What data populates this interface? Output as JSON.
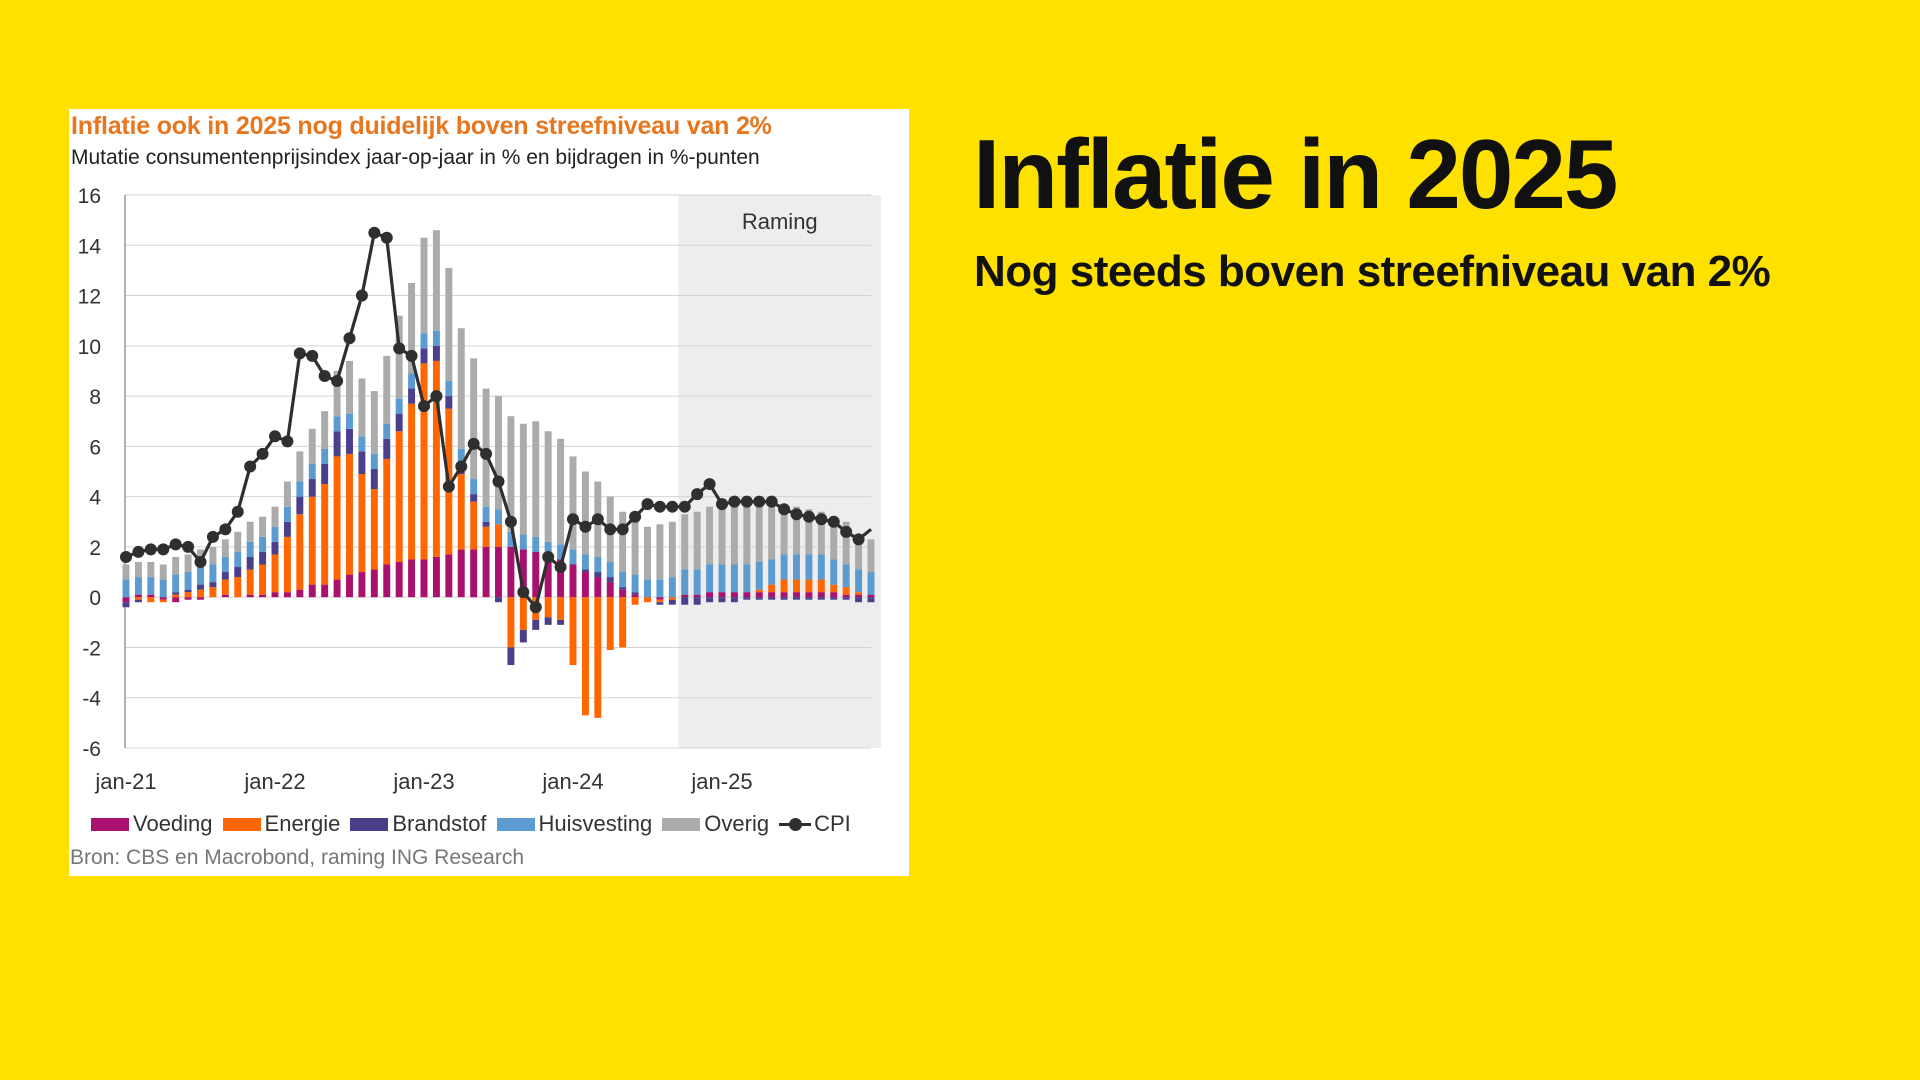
{
  "page": {
    "headline": "Inflatie in 2025",
    "subheadline": "Nog steeds boven streefniveau van 2%"
  },
  "colors": {
    "background": "#FFE100",
    "voeding": "#A8116E",
    "energie": "#FF6600",
    "brandstof": "#4B3F8C",
    "huisvesting": "#5B9BD0",
    "overig": "#ABABAB",
    "cpi": "#2F2F2F",
    "title": "#E8761F"
  },
  "chart_data": {
    "type": "bar",
    "stacked": true,
    "title": "Inflatie ook in 2025 nog duidelijk boven streefniveau van 2%",
    "subtitle": "Mutatie consumentenprijsindex jaar-op-jaar in % en bijdragen in %-punten",
    "source": "Bron: CBS en Macrobond, raming ING Research",
    "ylim": [
      -6,
      16
    ],
    "yticks": [
      "16",
      "14",
      "12",
      "10",
      "8",
      "6",
      "4",
      "2",
      "0",
      "-2",
      "-4",
      "-6"
    ],
    "xtick_labels": [
      "jan-21",
      "jan-22",
      "jan-23",
      "jan-24",
      "jan-25"
    ],
    "xtick_index": [
      0,
      12,
      24,
      36,
      48
    ],
    "forecast": {
      "label": "Raming",
      "start_index": 45,
      "end_index": 60
    },
    "grid": true,
    "legend_position": "bottom",
    "series": [
      {
        "name": "Voeding",
        "type": "bar",
        "values": [
          -0.2,
          0.1,
          0.1,
          -0.1,
          -0.2,
          -0.1,
          -0.1,
          0.0,
          0.1,
          0.0,
          0.1,
          0.1,
          0.2,
          0.2,
          0.3,
          0.5,
          0.5,
          0.7,
          0.9,
          1.0,
          1.1,
          1.3,
          1.4,
          1.5,
          1.5,
          1.6,
          1.7,
          1.9,
          1.9,
          2.0,
          2.0,
          2.0,
          1.9,
          1.8,
          1.6,
          1.5,
          1.3,
          1.0,
          0.8,
          0.6,
          0.3,
          0.1,
          0.0,
          -0.1,
          0.0,
          0.1,
          0.1,
          0.2,
          0.2,
          0.2,
          0.2,
          0.2,
          0.2,
          0.2,
          0.2,
          0.2,
          0.2,
          0.2,
          0.1,
          0.1,
          0.1
        ]
      },
      {
        "name": "Energie",
        "type": "bar",
        "values": [
          0.0,
          -0.1,
          -0.2,
          -0.1,
          0.1,
          0.2,
          0.3,
          0.4,
          0.6,
          0.8,
          1.0,
          1.2,
          1.5,
          2.2,
          3.0,
          3.5,
          4.0,
          4.9,
          4.8,
          3.9,
          3.2,
          4.2,
          5.2,
          6.2,
          7.8,
          7.8,
          5.8,
          3.0,
          1.9,
          0.8,
          0.9,
          -2.0,
          -1.3,
          -0.9,
          -0.8,
          -0.9,
          -2.7,
          -4.7,
          -4.8,
          -2.1,
          -2.0,
          -0.3,
          -0.2,
          -0.1,
          -0.1,
          0.0,
          0.0,
          0.0,
          0.0,
          0.0,
          0.0,
          0.1,
          0.3,
          0.5,
          0.5,
          0.5,
          0.5,
          0.3,
          0.3,
          0.1,
          0.0
        ]
      },
      {
        "name": "Brandstof",
        "type": "bar",
        "values": [
          -0.2,
          -0.1,
          0.0,
          0.0,
          0.1,
          0.1,
          0.2,
          0.2,
          0.3,
          0.4,
          0.5,
          0.5,
          0.5,
          0.6,
          0.7,
          0.7,
          0.8,
          1.0,
          1.0,
          0.9,
          0.8,
          0.8,
          0.7,
          0.6,
          0.6,
          0.6,
          0.5,
          0.4,
          0.3,
          0.2,
          -0.2,
          -0.7,
          -0.5,
          -0.4,
          -0.3,
          -0.2,
          0.0,
          0.1,
          0.2,
          0.2,
          0.1,
          0.1,
          0.0,
          -0.1,
          -0.2,
          -0.3,
          -0.3,
          -0.2,
          -0.2,
          -0.2,
          -0.1,
          -0.1,
          -0.1,
          -0.1,
          -0.1,
          -0.1,
          -0.1,
          -0.1,
          -0.1,
          -0.2,
          -0.2
        ]
      },
      {
        "name": "Huisvesting",
        "type": "bar",
        "values": [
          0.7,
          0.7,
          0.7,
          0.7,
          0.7,
          0.7,
          0.7,
          0.7,
          0.6,
          0.6,
          0.6,
          0.6,
          0.6,
          0.6,
          0.6,
          0.6,
          0.6,
          0.6,
          0.6,
          0.6,
          0.6,
          0.6,
          0.6,
          0.6,
          0.6,
          0.6,
          0.6,
          0.6,
          0.6,
          0.6,
          0.6,
          0.6,
          0.6,
          0.6,
          0.6,
          0.6,
          0.6,
          0.6,
          0.6,
          0.6,
          0.6,
          0.7,
          0.7,
          0.7,
          0.8,
          1.0,
          1.0,
          1.1,
          1.1,
          1.1,
          1.1,
          1.1,
          1.0,
          1.0,
          1.0,
          1.0,
          1.0,
          1.0,
          0.9,
          0.9,
          0.9
        ]
      },
      {
        "name": "Overig",
        "type": "bar",
        "values": [
          0.6,
          0.6,
          0.6,
          0.6,
          0.7,
          0.7,
          0.7,
          0.7,
          0.7,
          0.8,
          0.8,
          0.8,
          0.8,
          1.0,
          1.2,
          1.4,
          1.5,
          1.8,
          2.1,
          2.3,
          2.5,
          2.7,
          3.3,
          3.6,
          3.8,
          4.0,
          4.5,
          4.8,
          4.8,
          4.7,
          4.5,
          4.6,
          4.4,
          4.6,
          4.4,
          4.2,
          3.7,
          3.3,
          3.0,
          2.6,
          2.4,
          2.2,
          2.1,
          2.2,
          2.2,
          2.2,
          2.3,
          2.3,
          2.4,
          2.4,
          2.4,
          2.3,
          2.1,
          1.9,
          1.9,
          1.8,
          1.7,
          1.7,
          1.7,
          1.3,
          1.3
        ]
      },
      {
        "name": "CPI",
        "type": "line",
        "values": [
          1.6,
          1.8,
          1.9,
          1.9,
          2.1,
          2.0,
          1.4,
          2.4,
          2.7,
          3.4,
          5.2,
          5.7,
          6.4,
          6.2,
          9.7,
          9.6,
          8.8,
          8.6,
          10.3,
          12.0,
          14.5,
          14.3,
          9.9,
          9.6,
          7.6,
          8.0,
          4.4,
          5.2,
          6.1,
          5.7,
          4.6,
          3.0,
          0.2,
          -0.4,
          1.6,
          1.2,
          3.1,
          2.8,
          3.1,
          2.7,
          2.7,
          3.2,
          3.7,
          3.6,
          3.6,
          3.6,
          4.1,
          4.5,
          3.7,
          3.8,
          3.8,
          3.8,
          3.8,
          3.5,
          3.3,
          3.2,
          3.1,
          3.0,
          2.6,
          2.3,
          2.7
        ]
      }
    ]
  }
}
